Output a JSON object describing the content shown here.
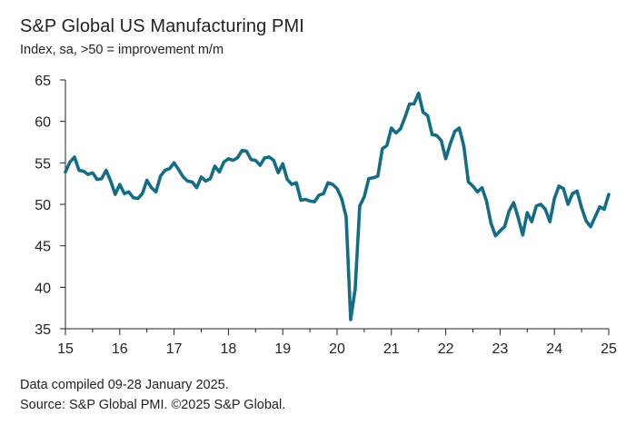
{
  "title": "S&P Global US Manufacturing PMI",
  "subtitle": "Index, sa, >50 = improvement m/m",
  "footer": {
    "line1": "Data compiled 09-28 January 2025.",
    "line2": "Source: S&P Global PMI. ©2025 S&P Global."
  },
  "colors": {
    "line": "#136d86",
    "axis": "#222222",
    "text": "#222222"
  },
  "chart_data": {
    "type": "line",
    "title": "S&P Global US Manufacturing PMI",
    "ylabel": "Index, sa, >50 = improvement m/m",
    "xlabel": "",
    "ylim": [
      35,
      65
    ],
    "yticks": [
      35,
      40,
      45,
      50,
      55,
      60,
      65
    ],
    "xlim": [
      15,
      25
    ],
    "xticks": [
      "15",
      "16",
      "17",
      "18",
      "19",
      "20",
      "21",
      "22",
      "23",
      "24",
      "25"
    ],
    "grid": false,
    "series": [
      {
        "name": "S&P Global US Manufacturing PMI",
        "start": 15.0,
        "step": 0.0833333,
        "values": [
          53.9,
          55.1,
          55.7,
          54.1,
          54.0,
          53.6,
          53.8,
          53.0,
          53.1,
          54.1,
          52.8,
          51.2,
          52.4,
          51.3,
          51.5,
          50.8,
          50.7,
          51.3,
          52.9,
          52.0,
          51.5,
          53.4,
          54.1,
          54.3,
          55.0,
          54.2,
          53.3,
          52.8,
          52.7,
          52.0,
          53.3,
          52.8,
          53.1,
          54.6,
          53.9,
          55.1,
          55.5,
          55.3,
          55.6,
          56.5,
          56.4,
          55.4,
          55.3,
          54.7,
          55.6,
          55.7,
          55.3,
          53.8,
          54.9,
          53.0,
          52.4,
          52.6,
          50.5,
          50.6,
          50.4,
          50.3,
          51.1,
          51.3,
          52.6,
          52.4,
          51.9,
          50.7,
          48.5,
          36.1,
          39.8,
          49.8,
          50.9,
          53.1,
          53.2,
          53.4,
          56.7,
          57.1,
          59.2,
          58.6,
          59.1,
          60.5,
          62.1,
          62.1,
          63.4,
          61.1,
          60.7,
          58.4,
          58.3,
          57.7,
          55.5,
          57.3,
          58.8,
          59.2,
          57.0,
          52.7,
          52.2,
          51.5,
          52.0,
          50.4,
          47.7,
          46.2,
          46.8,
          47.3,
          49.2,
          50.2,
          48.4,
          46.3,
          49.0,
          47.9,
          49.8,
          50.0,
          49.4,
          47.9,
          50.7,
          52.2,
          51.9,
          50.0,
          51.3,
          51.6,
          49.6,
          48.0,
          47.3,
          48.5,
          49.7,
          49.4,
          51.2
        ]
      }
    ]
  }
}
